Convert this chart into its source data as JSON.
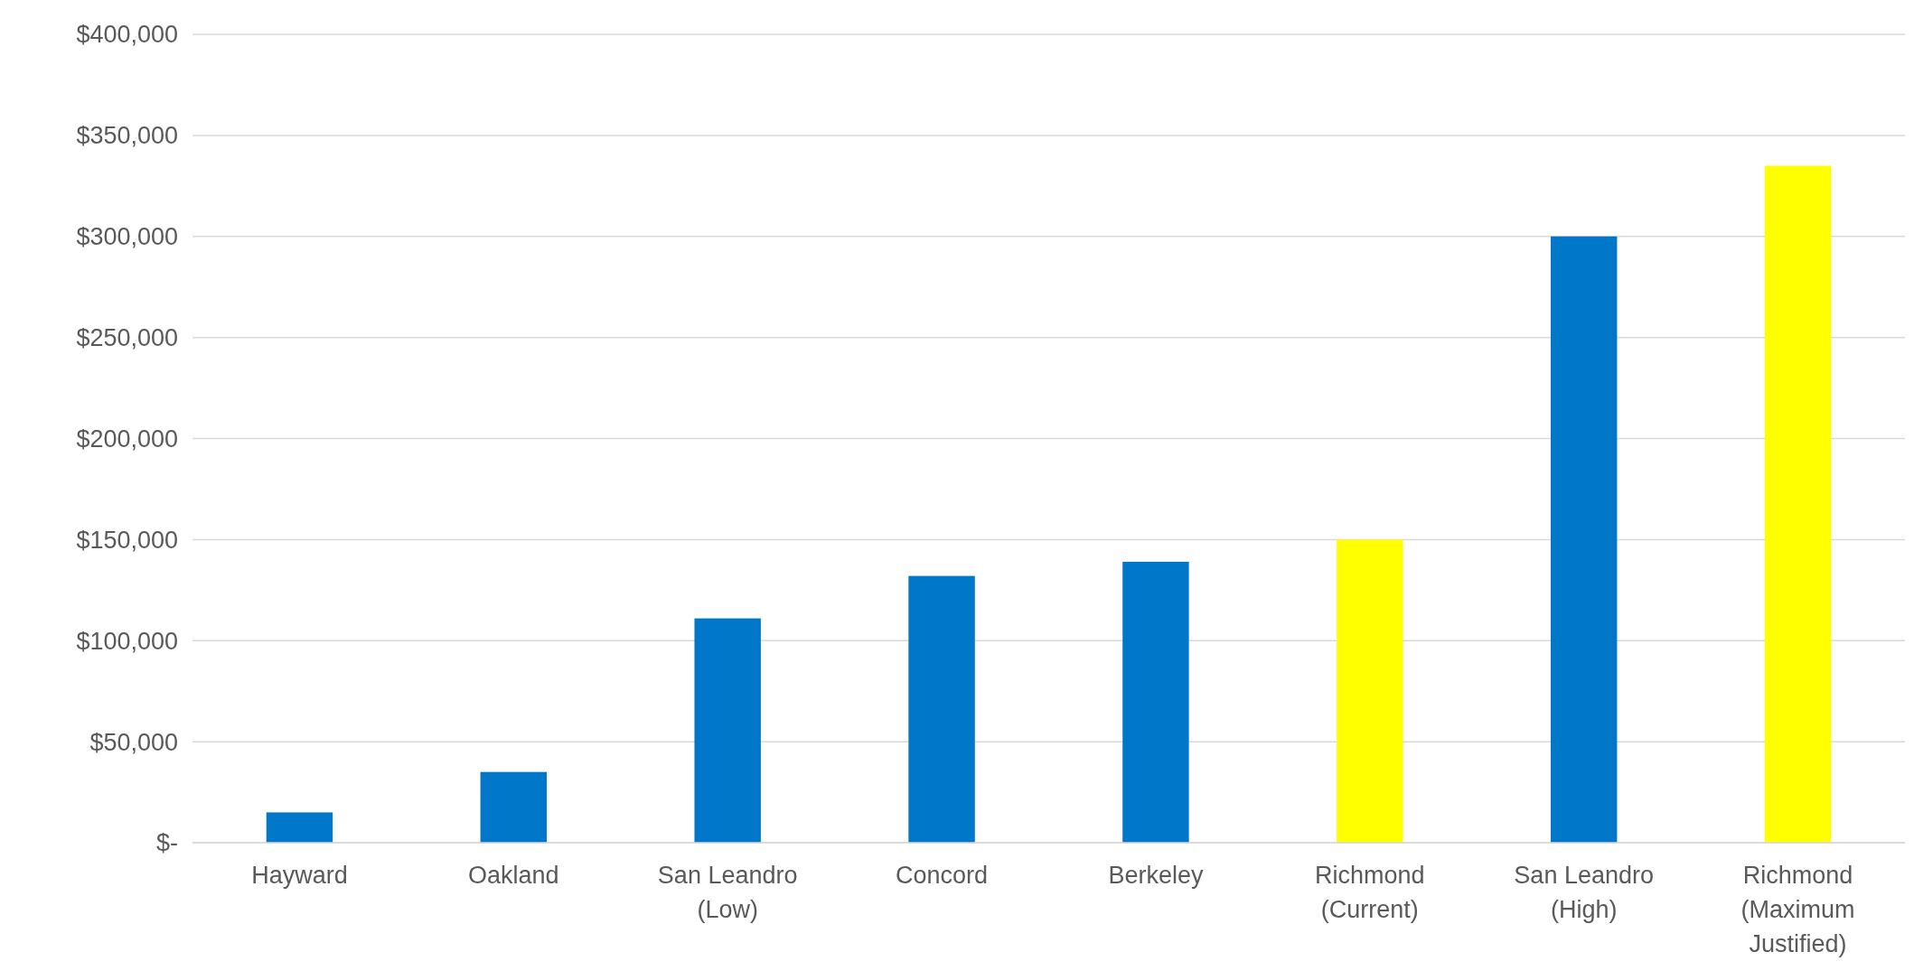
{
  "chart_data": {
    "type": "bar",
    "categories": [
      "Hayward",
      "Oakland",
      "San Leandro (Low)",
      "Concord",
      "Berkeley",
      "Richmond (Current)",
      "San Leandro (High)",
      "Richmond (Maximum Justified)"
    ],
    "values": [
      15000,
      35000,
      111000,
      132000,
      139000,
      150000,
      300000,
      335000
    ],
    "colors": [
      "#0077c8",
      "#0077c8",
      "#0077c8",
      "#0077c8",
      "#0077c8",
      "#ffff00",
      "#0077c8",
      "#ffff00"
    ],
    "ylim": [
      0,
      400000
    ],
    "yticks": [
      {
        "value": 0,
        "label": "$-"
      },
      {
        "value": 50000,
        "label": "$50,000"
      },
      {
        "value": 100000,
        "label": "$100,000"
      },
      {
        "value": 150000,
        "label": "$150,000"
      },
      {
        "value": 200000,
        "label": "$200,000"
      },
      {
        "value": 250000,
        "label": "$250,000"
      },
      {
        "value": 300000,
        "label": "$300,000"
      },
      {
        "value": 350000,
        "label": "$350,000"
      },
      {
        "value": 400000,
        "label": "$400,000"
      }
    ],
    "grid": "y"
  }
}
